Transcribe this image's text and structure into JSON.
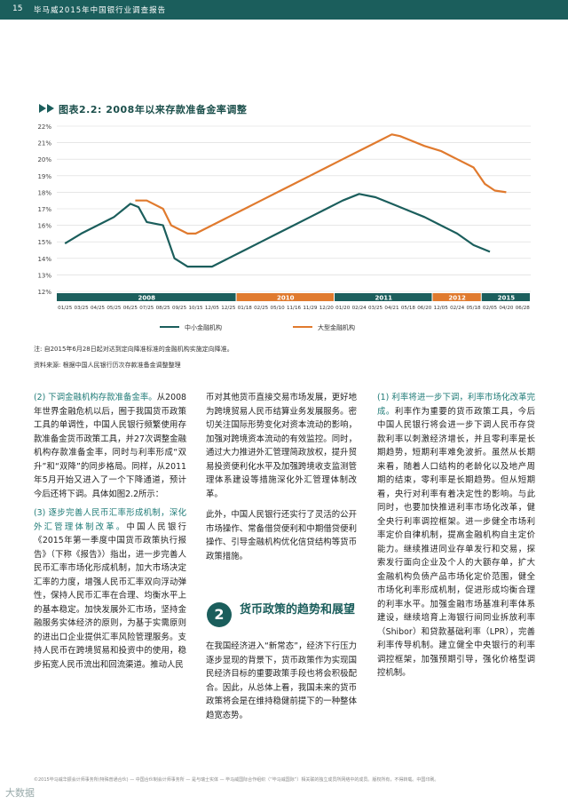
{
  "header": {
    "page": "15",
    "title": "毕马威2015年中国银行业调查报告"
  },
  "figure": {
    "title": "图表2.2: 2008年以来存款准备金率调整"
  },
  "chart_data": {
    "type": "line",
    "title": "图表2.2: 2008年以来存款准备金率调整",
    "y_ticks": [
      "12%",
      "13%",
      "14%",
      "15%",
      "16%",
      "17%",
      "18%",
      "19%",
      "20%",
      "21%",
      "22%"
    ],
    "ylim": [
      12,
      22
    ],
    "x_labels": [
      "01/25",
      "03/25",
      "04/25",
      "05/25",
      "06/25",
      "07/25",
      "08/25",
      "09/25",
      "10/15",
      "12/05",
      "12/25",
      "01/18",
      "02/25",
      "05/10",
      "11/16",
      "11/29",
      "12/20",
      "01/20",
      "02/24",
      "03/25",
      "04/21",
      "05/18",
      "06/20",
      "12/05",
      "02/24",
      "05/18",
      "02/05",
      "04/20",
      "06/28"
    ],
    "year_bands": [
      {
        "label": "2008",
        "color": "#1b5e5c",
        "from": 0,
        "to": 11
      },
      {
        "label": "2010",
        "color": "#e07a2e",
        "from": 11,
        "to": 17
      },
      {
        "label": "2011",
        "color": "#1b5e5c",
        "from": 17,
        "to": 23
      },
      {
        "label": "2012",
        "color": "#e07a2e",
        "from": 23,
        "to": 26
      },
      {
        "label": "2015",
        "color": "#1b5e5c",
        "from": 26,
        "to": 29
      }
    ],
    "series": [
      {
        "name": "中小金融机构",
        "color": "#1b5e5c",
        "points": [
          [
            0,
            14.9
          ],
          [
            1,
            15.5
          ],
          [
            2,
            16.0
          ],
          [
            3,
            16.5
          ],
          [
            4,
            17.3
          ],
          [
            4.5,
            17.1
          ],
          [
            5,
            16.2
          ],
          [
            6,
            16.0
          ],
          [
            6.7,
            14.0
          ],
          [
            7.5,
            13.5
          ],
          [
            8.5,
            13.5
          ],
          [
            9,
            13.5
          ],
          [
            10,
            14.0
          ],
          [
            11,
            14.5
          ],
          [
            12,
            15.0
          ],
          [
            13,
            15.5
          ],
          [
            14,
            16.0
          ],
          [
            15,
            16.5
          ],
          [
            16,
            17.0
          ],
          [
            17,
            17.5
          ],
          [
            18,
            17.9
          ],
          [
            19,
            17.7
          ],
          [
            20,
            17.3
          ],
          [
            21,
            16.9
          ],
          [
            22,
            16.5
          ],
          [
            23,
            16.0
          ],
          [
            24,
            15.5
          ],
          [
            25,
            14.8
          ],
          [
            26,
            14.4
          ]
        ]
      },
      {
        "name": "大型金融机构",
        "color": "#e07a2e",
        "points": [
          [
            4.3,
            17.5
          ],
          [
            5,
            17.5
          ],
          [
            6,
            17.0
          ],
          [
            6.5,
            16.0
          ],
          [
            7.5,
            15.5
          ],
          [
            8,
            15.5
          ],
          [
            9,
            16.0
          ],
          [
            10,
            16.5
          ],
          [
            11,
            17.0
          ],
          [
            12,
            17.5
          ],
          [
            13,
            18.0
          ],
          [
            14,
            18.5
          ],
          [
            15,
            19.0
          ],
          [
            16,
            19.5
          ],
          [
            17,
            20.0
          ],
          [
            18,
            20.5
          ],
          [
            19,
            21.0
          ],
          [
            20,
            21.5
          ],
          [
            20.5,
            21.4
          ],
          [
            21,
            21.2
          ],
          [
            22,
            20.8
          ],
          [
            23,
            20.5
          ],
          [
            24,
            20.0
          ],
          [
            25,
            19.5
          ],
          [
            25.7,
            18.5
          ],
          [
            26.3,
            18.1
          ],
          [
            27,
            18.0
          ]
        ]
      }
    ]
  },
  "legend": {
    "small": "中小金融机构",
    "large": "大型金融机构"
  },
  "notes": {
    "note": "注: 自2015年6月28日起对达到定向降准标准的金融机构实施定向降准。",
    "source": "资料来源: 根据中国人民银行历次存款准备金调整整理"
  },
  "col1": {
    "p1_head": "(2) 下调金融机构存款准备金率。",
    "p1_body": "从2008年世界金融危机以后，囿于我国货币政策工具的单调性，中国人民银行频繁使用存款准备金货币政策工具，并27次调整金融机构存款准备金率，同时与利率形成“双升”和“双降”的同步格局。同样，从2011年5月开始又进入了一个下降通道，预计今后还将下调。具体如图2.2所示：",
    "p2_head": "(3) 逐步完善人民币汇率形成机制，深化外汇管理体制改革。",
    "p2_body": "中国人民银行《2015年第一季度中国货币政策执行报告》（下称《报告》）指出，进一步完善人民币汇率市场化形成机制，加大市场决定汇率的力度，增强人民币汇率双向浮动弹性，保持人民币汇率在合理、均衡水平上的基本稳定。加快发展外汇市场，坚持金融服务实体经济的原则，为基于实需原则的进出口企业提供汇率风险管理服务。支持人民币在跨境贸易和投资中的使用，稳步拓宽人民币流出和回流渠道。推动人民"
  },
  "col2": {
    "p1": "币对其他货币直接交易市场发展，更好地为跨境贸易人民币结算业务发展服务。密切关注国际形势变化对资本流动的影响，加强对跨境资本流动的有效监控。同时，通过大力推进外汇管理简政放权，提升贸易投资便利化水平及加强跨境收支监测管理体系建设等措施深化外汇管理体制改革。",
    "p2": "此外，中国人民银行还实行了灵活的公开市场操作、常备借贷便利和中期借贷便利操作、引导金融机构优化信贷结构等货币政策措施。",
    "sec_num": "2",
    "sec_title": "货币政策的趋势和展望",
    "p3": "在我国经济进入“新常态”，经济下行压力逐步显现的背景下，货币政策作为实现国民经济目标的重要政策手段也将会积极配合。因此，从总体上看，我国未来的货币政策将会是在维持稳健前提下的一种整体趋宽态势。"
  },
  "col3": {
    "p1_head": "(1) 利率将进一步下调，利率市场化改革完成。",
    "p1_body": "利率作为重要的货币政策工具，今后中国人民银行将会进一步下调人民币存贷款利率以刺激经济增长，并且零利率是长期趋势，短期利率难免波折。虽然从长期来看，随着人口结构的老龄化以及地产周期的结束，零利率是长期趋势。但从短期看，央行对利率有着决定性的影响。与此同时，也要加快推进利率市场化改革，健全央行利率调控框架。进一步健全市场利率定价自律机制，提高金融机构自主定价能力。继续推进同业存单发行和交易，探索发行面向企业及个人的大额存单，扩大金融机构负债产品市场化定价范围，健全市场化利率形成机制，促进形成均衡合理的利率水平。加强金融市场基准利率体系建设，继续培育上海银行间同业拆放利率（Shibor）和贷款基础利率（LPR），完善利率传导机制。建立健全中央银行的利率调控框架，加强预期引导，强化价格型调控机制。"
  },
  "footer": {
    "text": "©2015毕马威华振会计师事务所(特殊普通合伙) — 中国合伙制会计师事务所 — 是与瑞士实体 — 毕马威国际合作组织（“毕马威国际”）相关联的独立成员所网络中的成员。版权所有，不得转载。中国印刷。"
  },
  "watermark": "大数据"
}
